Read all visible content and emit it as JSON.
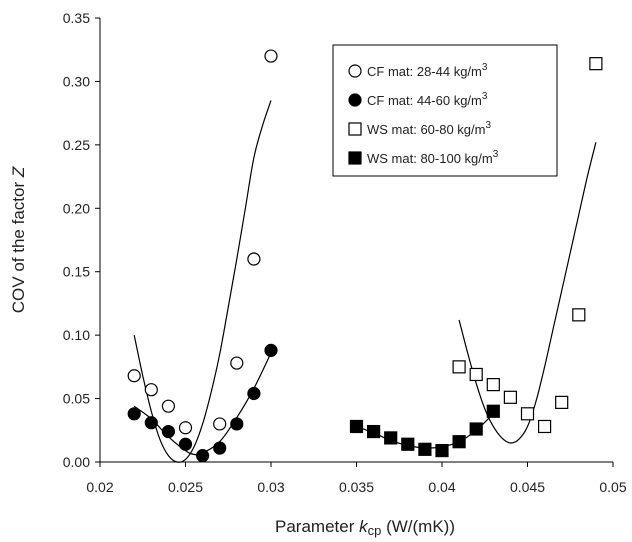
{
  "chart_data": {
    "type": "scatter",
    "xlabel": {
      "pre": "Parameter ",
      "var": "k",
      "sub": "cp",
      "post": " (W/(mK))"
    },
    "ylabel": {
      "pre": "COV of the factor ",
      "var": "Z"
    },
    "xlim": [
      0.02,
      0.05
    ],
    "ylim": [
      0,
      0.35
    ],
    "xticks": [
      "0.02",
      "0.025",
      "0.03",
      "0.035",
      "0.04",
      "0.045",
      "0.05"
    ],
    "yticks": [
      "0.00",
      "0.05",
      "0.10",
      "0.15",
      "0.20",
      "0.25",
      "0.30",
      "0.35"
    ],
    "grid": false,
    "legend_position": "top-right",
    "series": [
      {
        "name": "CF mat: 28-44 kg/m",
        "unit_sup": "3",
        "marker": "circle-open",
        "points": [
          [
            0.022,
            0.068
          ],
          [
            0.023,
            0.057
          ],
          [
            0.024,
            0.044
          ],
          [
            0.025,
            0.027
          ],
          [
            0.027,
            0.03
          ],
          [
            0.028,
            0.078
          ],
          [
            0.029,
            0.16
          ],
          [
            0.03,
            0.32
          ]
        ],
        "fit": [
          0.022,
          0.03
        ],
        "fit_curve": [
          [
            0.022,
            0.1
          ],
          [
            0.0225,
            0.068
          ],
          [
            0.023,
            0.04
          ],
          [
            0.0235,
            0.018
          ],
          [
            0.024,
            0.005
          ],
          [
            0.0245,
            0.0
          ],
          [
            0.025,
            0.002
          ],
          [
            0.0255,
            0.012
          ],
          [
            0.026,
            0.03
          ],
          [
            0.0265,
            0.055
          ],
          [
            0.027,
            0.085
          ],
          [
            0.0275,
            0.122
          ],
          [
            0.028,
            0.16
          ],
          [
            0.0285,
            0.2
          ],
          [
            0.029,
            0.24
          ],
          [
            0.0295,
            0.265
          ],
          [
            0.03,
            0.285
          ]
        ]
      },
      {
        "name": "CF mat: 44-60 kg/m",
        "unit_sup": "3",
        "marker": "circle-filled",
        "points": [
          [
            0.022,
            0.038
          ],
          [
            0.023,
            0.031
          ],
          [
            0.024,
            0.024
          ],
          [
            0.025,
            0.014
          ],
          [
            0.026,
            0.005
          ],
          [
            0.027,
            0.011
          ],
          [
            0.028,
            0.03
          ],
          [
            0.029,
            0.054
          ],
          [
            0.03,
            0.088
          ]
        ],
        "fit_curve": [
          [
            0.022,
            0.044
          ],
          [
            0.023,
            0.034
          ],
          [
            0.024,
            0.02
          ],
          [
            0.025,
            0.009
          ],
          [
            0.0255,
            0.006
          ],
          [
            0.026,
            0.007
          ],
          [
            0.027,
            0.016
          ],
          [
            0.028,
            0.035
          ],
          [
            0.029,
            0.058
          ],
          [
            0.03,
            0.086
          ]
        ]
      },
      {
        "name": "WS mat: 60-80 kg/m",
        "unit_sup": "3",
        "marker": "square-open",
        "points": [
          [
            0.041,
            0.075
          ],
          [
            0.042,
            0.069
          ],
          [
            0.043,
            0.061
          ],
          [
            0.044,
            0.051
          ],
          [
            0.045,
            0.038
          ],
          [
            0.046,
            0.028
          ],
          [
            0.047,
            0.047
          ],
          [
            0.048,
            0.116
          ],
          [
            0.049,
            0.314
          ]
        ],
        "fit_curve": [
          [
            0.041,
            0.112
          ],
          [
            0.0415,
            0.086
          ],
          [
            0.042,
            0.062
          ],
          [
            0.0425,
            0.042
          ],
          [
            0.043,
            0.028
          ],
          [
            0.0435,
            0.019
          ],
          [
            0.044,
            0.015
          ],
          [
            0.0445,
            0.018
          ],
          [
            0.045,
            0.028
          ],
          [
            0.0455,
            0.048
          ],
          [
            0.046,
            0.075
          ],
          [
            0.0465,
            0.105
          ],
          [
            0.047,
            0.135
          ],
          [
            0.0475,
            0.165
          ],
          [
            0.048,
            0.195
          ],
          [
            0.0485,
            0.225
          ],
          [
            0.049,
            0.252
          ]
        ]
      },
      {
        "name": "WS mat: 80-100 kg/m",
        "unit_sup": "3",
        "marker": "square-filled",
        "points": [
          [
            0.035,
            0.028
          ],
          [
            0.036,
            0.024
          ],
          [
            0.037,
            0.019
          ],
          [
            0.038,
            0.014
          ],
          [
            0.039,
            0.01
          ],
          [
            0.04,
            0.009
          ],
          [
            0.041,
            0.016
          ],
          [
            0.042,
            0.026
          ],
          [
            0.043,
            0.04
          ]
        ],
        "fit_curve": [
          [
            0.035,
            0.028
          ],
          [
            0.036,
            0.023
          ],
          [
            0.037,
            0.017
          ],
          [
            0.038,
            0.013
          ],
          [
            0.039,
            0.011
          ],
          [
            0.04,
            0.012
          ],
          [
            0.041,
            0.016
          ],
          [
            0.042,
            0.025
          ],
          [
            0.043,
            0.038
          ]
        ]
      }
    ]
  }
}
